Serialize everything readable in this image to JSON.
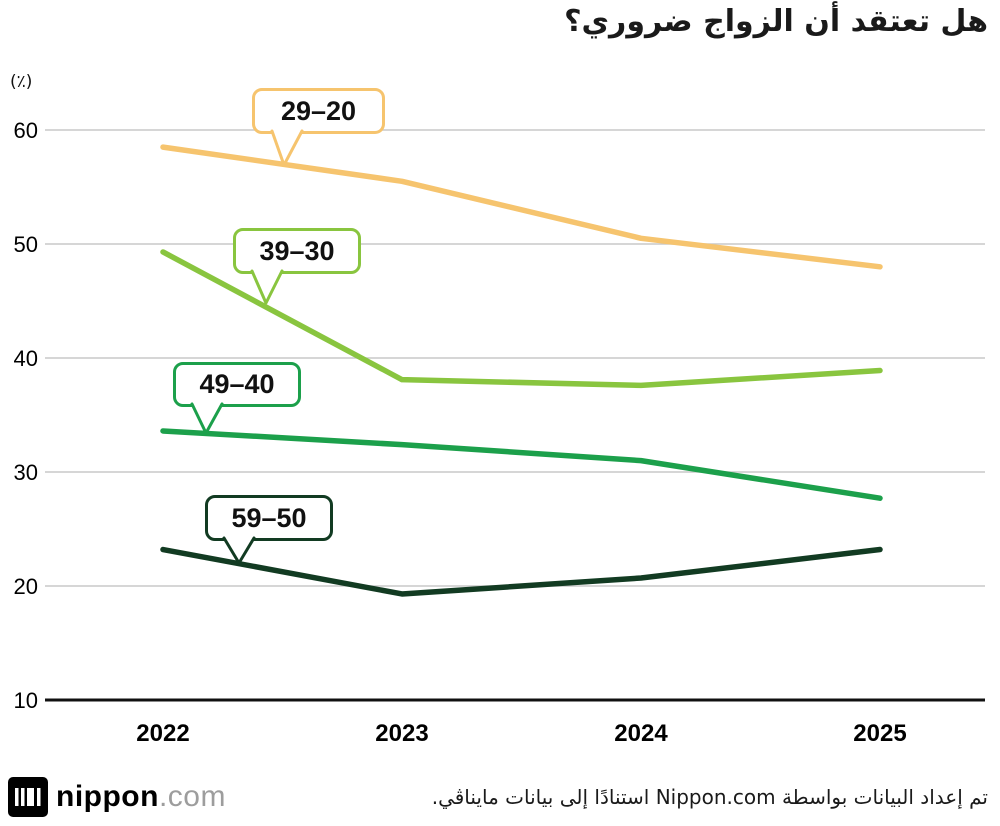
{
  "chart_data": {
    "type": "line",
    "title": "هل تعتقد أن الزواج ضروري؟",
    "ylabel": "(٪)",
    "x": [
      2022,
      2023,
      2024,
      2025
    ],
    "x_tick_labels": [
      "2022",
      "2023",
      "2024",
      "2025"
    ],
    "y_ticks": [
      60,
      50,
      40,
      30,
      20,
      10
    ],
    "ylim": [
      10,
      60
    ],
    "grid": true,
    "legend_position": "callouts",
    "series": [
      {
        "name": "20-29",
        "label": "29–20",
        "color": "#F6C46E",
        "values": [
          58.5,
          55.5,
          50.5,
          48.0
        ]
      },
      {
        "name": "30-39",
        "label": "39–30",
        "color": "#89C53F",
        "values": [
          49.3,
          38.1,
          37.6,
          38.9
        ]
      },
      {
        "name": "40-49",
        "label": "49–40",
        "color": "#1CA04B",
        "values": [
          33.6,
          32.4,
          31.0,
          27.7
        ]
      },
      {
        "name": "50-59",
        "label": "59–50",
        "color": "#123B22",
        "values": [
          23.2,
          19.3,
          20.7,
          23.2
        ]
      }
    ]
  },
  "footer": {
    "logo_text_black": "nippon",
    "logo_text_gray": ".com",
    "source_text": "تم إعداد البيانات بواسطة Nippon.com استنادًا إلى بيانات مايناڤي."
  }
}
